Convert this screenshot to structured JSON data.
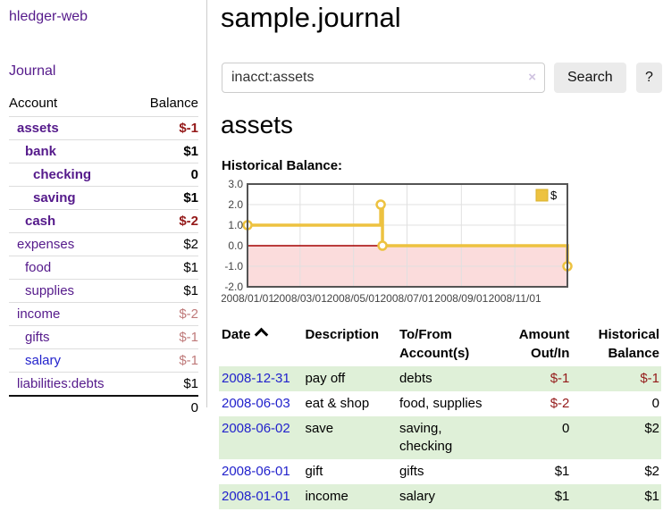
{
  "app": {
    "title": "hledger-web"
  },
  "nav": {
    "journal_label": "Journal"
  },
  "sidebar": {
    "header": {
      "account": "Account",
      "balance": "Balance"
    },
    "accounts": [
      {
        "label": "assets",
        ":indent": 1,
        "indent": 1,
        "bold": true,
        "balance": "$-1",
        "balance_color": "negative",
        "link_color": "purple"
      },
      {
        "label": "bank",
        "indent": 2,
        "bold": true,
        "balance": "$1",
        "balance_color": "normal",
        "link_color": "purple"
      },
      {
        "label": "checking",
        "indent": 3,
        "bold": true,
        "balance": "0",
        "balance_color": "normal",
        "link_color": "purple"
      },
      {
        "label": "saving",
        "indent": 3,
        "bold": true,
        "balance": "$1",
        "balance_color": "normal",
        "link_color": "purple"
      },
      {
        "label": "cash",
        "indent": 2,
        "bold": true,
        "balance": "$-2",
        "balance_color": "negative",
        "link_color": "purple"
      },
      {
        "label": "expenses",
        "indent": 1,
        "bold": false,
        "balance": "$2",
        "balance_color": "normal",
        "link_color": "purple"
      },
      {
        "label": "food",
        "indent": 2,
        "bold": false,
        "balance": "$1",
        "balance_color": "normal",
        "link_color": "purple"
      },
      {
        "label": "supplies",
        "indent": 2,
        "bold": false,
        "balance": "$1",
        "balance_color": "normal",
        "link_color": "purple"
      },
      {
        "label": "income",
        "indent": 1,
        "bold": false,
        "balance": "$-2",
        "balance_color": "negative-soft",
        "link_color": "purple"
      },
      {
        "label": "gifts",
        "indent": 2,
        "bold": false,
        "balance": "$-1",
        "balance_color": "negative-soft",
        "link_color": "purple"
      },
      {
        "label": "salary",
        "indent": 2,
        "bold": false,
        "balance": "$-1",
        "balance_color": "negative-soft",
        "link_color": "blue"
      },
      {
        "label": "liabilities:debts",
        "indent": 1,
        "bold": false,
        "balance": "$1",
        "balance_color": "normal",
        "link_color": "purple"
      }
    ],
    "total": "0"
  },
  "main": {
    "title": "sample.journal",
    "search": {
      "value": "inacct:assets",
      "clear_icon": "×",
      "button_label": "Search",
      "help_label": "?"
    },
    "account_heading": "assets",
    "chart_heading": "Historical Balance:"
  },
  "chart_data": {
    "type": "line",
    "step": true,
    "title": "Historical Balance",
    "xlabel": "",
    "ylabel": "",
    "xlim_days": [
      0,
      365
    ],
    "ylim": [
      -2,
      3
    ],
    "grid": true,
    "legend_position": "top-right",
    "x_ticks": [
      {
        "label": "2008/01/01",
        "day": 0
      },
      {
        "label": "2008/03/01",
        "day": 60
      },
      {
        "label": "2008/05/01",
        "day": 121
      },
      {
        "label": "2008/07/01",
        "day": 182
      },
      {
        "label": "2008/09/01",
        "day": 244
      },
      {
        "label": "2008/11/01",
        "day": 305
      }
    ],
    "y_ticks": [
      {
        "label": "3.0",
        "value": 3
      },
      {
        "label": "2.0",
        "value": 2
      },
      {
        "label": "1.0",
        "value": 1
      },
      {
        "label": "0.0",
        "value": 0
      },
      {
        "label": "-1.0",
        "value": -1
      },
      {
        "label": "-2.0",
        "value": -2
      }
    ],
    "series": [
      {
        "name": "$",
        "color": "#edc240",
        "points": [
          {
            "date": "2008/01/01",
            "day": 0,
            "value": 1
          },
          {
            "date": "2008/06/01",
            "day": 152,
            "value": 2
          },
          {
            "date": "2008/06/03",
            "day": 154,
            "value": 0
          },
          {
            "date": "2008/12/31",
            "day": 365,
            "value": -1
          }
        ]
      }
    ],
    "negative_region_fill": "#fbdcdc",
    "zero_line_color": "#a40000"
  },
  "register": {
    "headers": {
      "date": "Date",
      "description": "Description",
      "accounts_line1": "To/From",
      "accounts_line2": "Account(s)",
      "amount_line1": "Amount",
      "amount_line2": "Out/In",
      "balance_line1": "Historical",
      "balance_line2": "Balance"
    },
    "rows": [
      {
        "date": "2008-12-31",
        "description": "pay off",
        "accounts": "debts",
        "amount": "$-1",
        "amount_negative": true,
        "balance": "$-1",
        "balance_negative": true
      },
      {
        "date": "2008-06-03",
        "description": "eat & shop",
        "accounts": "food, supplies",
        "amount": "$-2",
        "amount_negative": true,
        "balance": "0",
        "balance_negative": false
      },
      {
        "date": "2008-06-02",
        "description": "save",
        "accounts": "saving, checking",
        "amount": "0",
        "amount_negative": false,
        "balance": "$2",
        "balance_negative": false
      },
      {
        "date": "2008-06-01",
        "description": "gift",
        "accounts": "gifts",
        "amount": "$1",
        "amount_negative": false,
        "balance": "$2",
        "balance_negative": false
      },
      {
        "date": "2008-01-01",
        "description": "income",
        "accounts": "salary",
        "amount": "$1",
        "amount_negative": false,
        "balance": "$1",
        "balance_negative": false
      }
    ]
  },
  "colors": {
    "link_purple": "#551a8b",
    "link_blue": "#2222cc",
    "negative": "#941919",
    "negative_soft": "#bf7a7a",
    "row_stripe_green": "#dff0d8",
    "chart_line_gold": "#edc240",
    "chart_negative_fill": "#fbdcdc",
    "chart_zero_line": "#a40000",
    "chart_border": "#545454",
    "chart_grid": "#e0e0e0",
    "button_bg": "#ebebeb"
  }
}
